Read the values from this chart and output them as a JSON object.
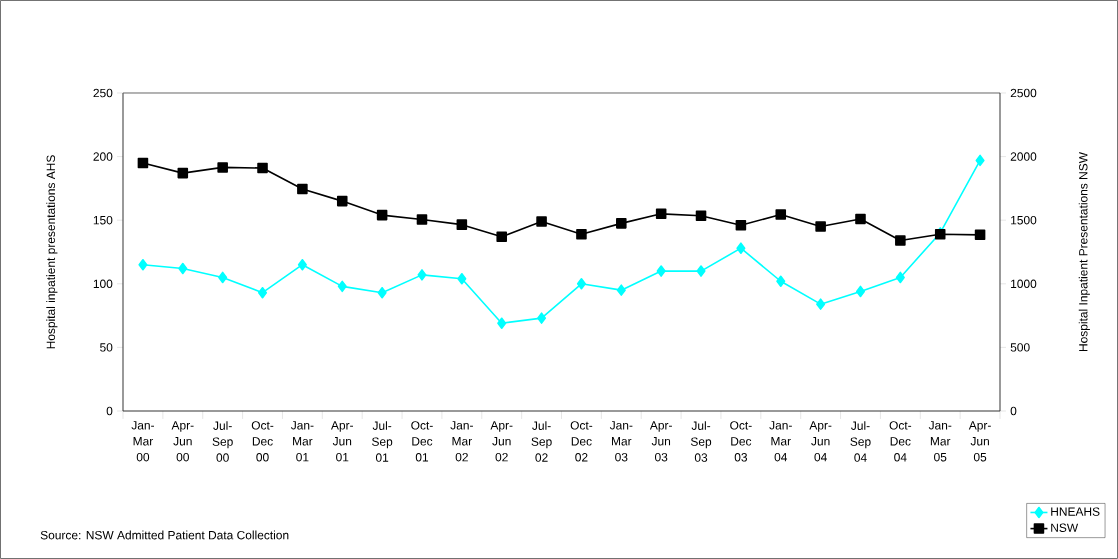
{
  "chart_data": {
    "type": "line",
    "categories": [
      "Jan- Mar 00",
      "Apr- Jun 00",
      "Jul- Sep 00",
      "Oct- Dec 00",
      "Jan- Mar 01",
      "Apr- Jun 01",
      "Jul- Sep 01",
      "Oct- Dec 01",
      "Jan- Mar 02",
      "Apr- Jun 02",
      "Jul- Sep 02",
      "Oct- Dec 02",
      "Jan- Mar 03",
      "Apr- Jun 03",
      "Jul- Sep 03",
      "Oct- Dec 03",
      "Jan- Mar 04",
      "Apr- Jun 04",
      "Jul- Sep 04",
      "Oct- Dec 04",
      "Jan- Mar 05",
      "Apr- Jun 05"
    ],
    "series": [
      {
        "name": "HNEAHS",
        "color": "#00ffff",
        "marker": "diamond",
        "values": [
          115,
          112,
          105,
          93,
          115,
          98,
          93,
          107,
          104,
          69,
          73,
          100,
          95,
          110,
          110,
          128,
          102,
          84,
          94,
          105,
          140,
          197
        ]
      },
      {
        "name": "NSW",
        "color": "#000000",
        "marker": "square",
        "axis": "y2",
        "values": [
          1950,
          1870,
          1915,
          1910,
          1745,
          1650,
          1540,
          1505,
          1465,
          1370,
          1490,
          1390,
          1475,
          1550,
          1535,
          1460,
          1545,
          1450,
          1510,
          1340,
          1390,
          1385
        ]
      }
    ],
    "ylabel": "Hospital inpatient presentations AHS",
    "y2label": "Hospital Inpatient Presentations NSW",
    "ylim": [
      0,
      250
    ],
    "yticks": [
      0,
      50,
      100,
      150,
      200,
      250
    ],
    "y2lim": [
      0,
      2500
    ],
    "y2ticks": [
      0,
      500,
      1000,
      1500,
      2000,
      2500
    ],
    "grid": false,
    "legend": "bottom right",
    "annotations": [
      "Source:  NSW Admitted Patient Data Collection"
    ]
  }
}
